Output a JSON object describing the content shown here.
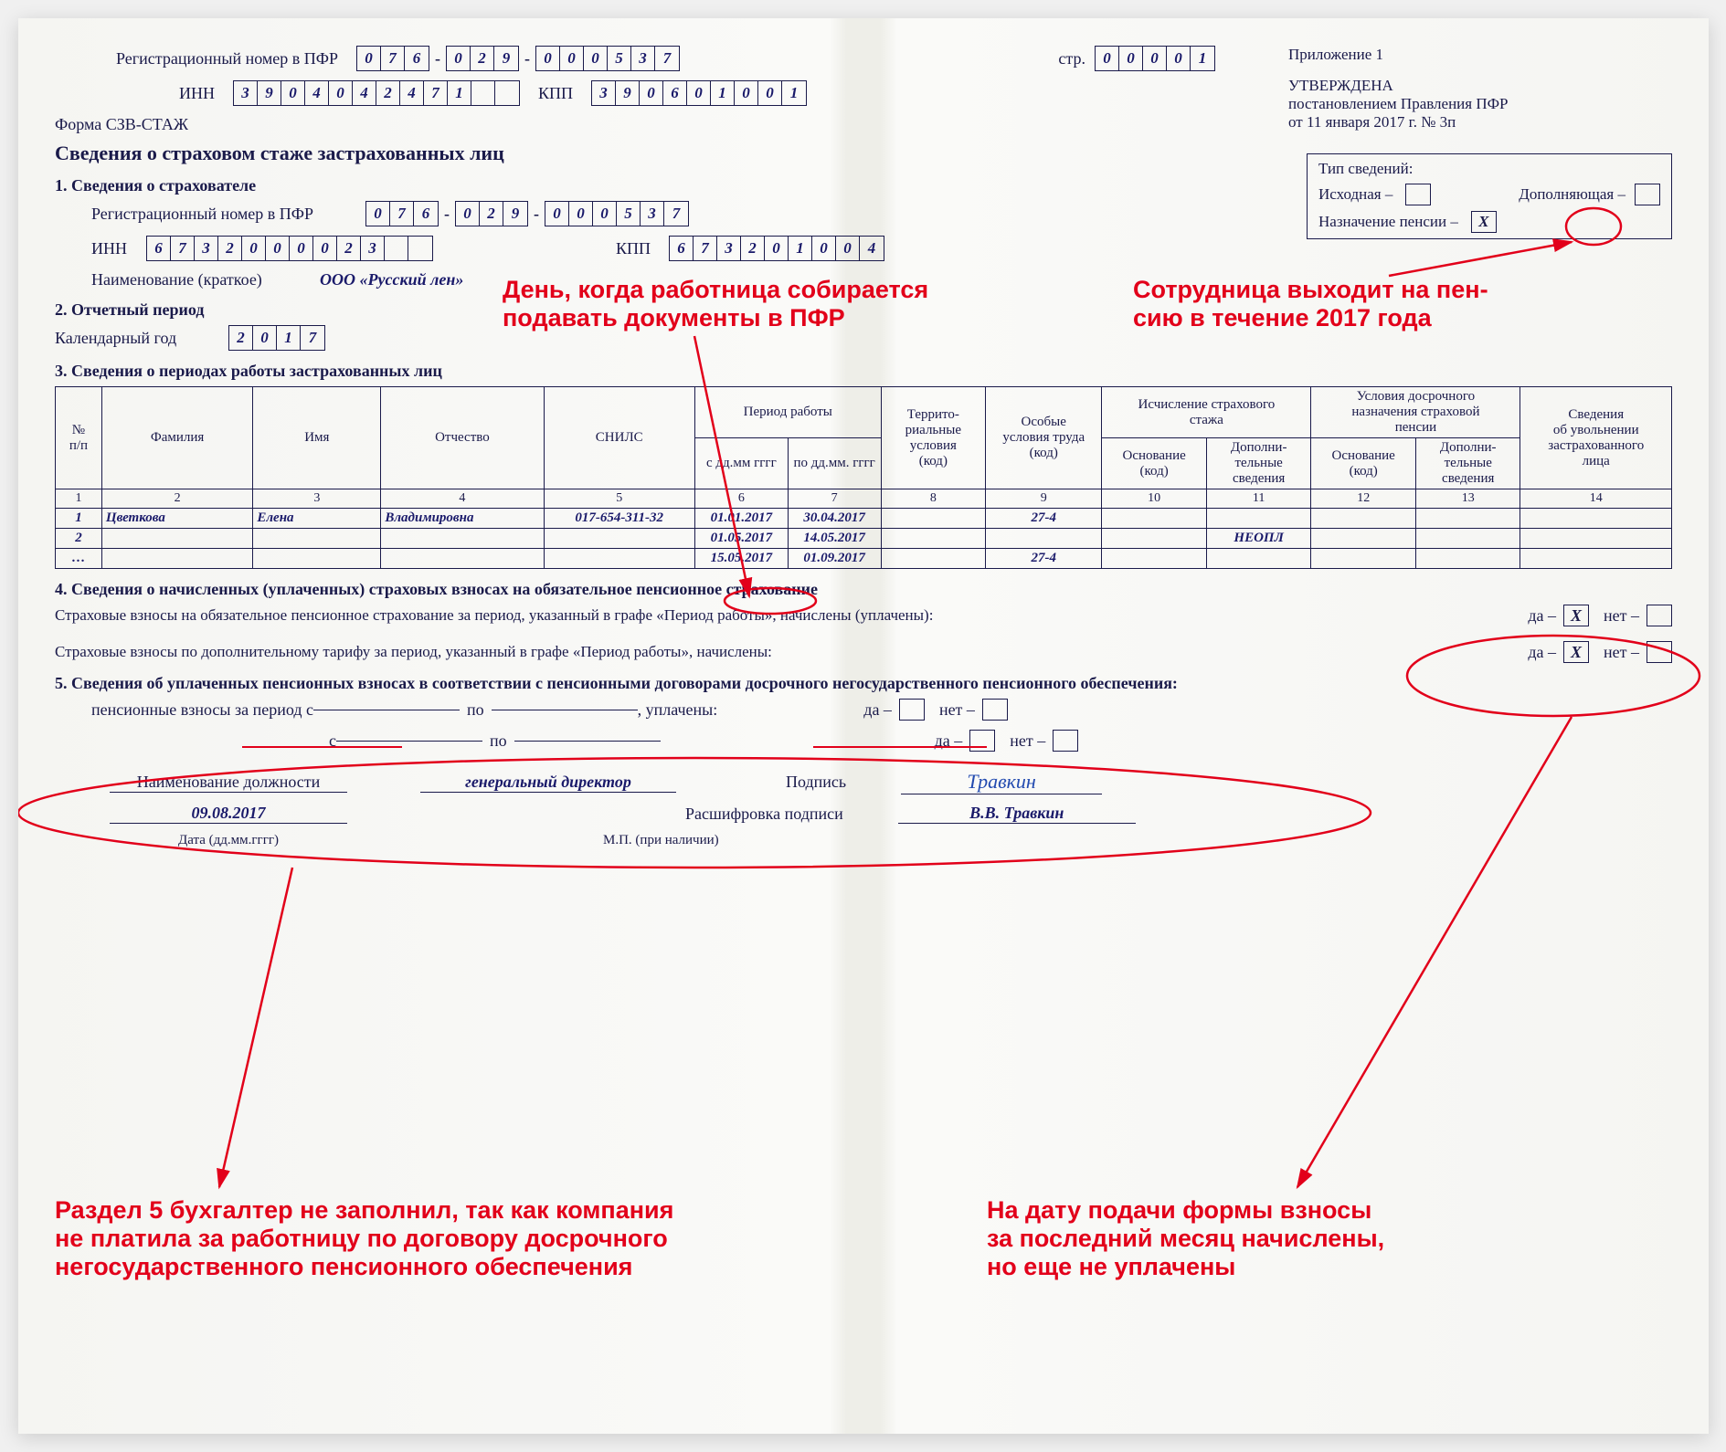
{
  "header": {
    "reg_label": "Регистрационный номер в ПФР",
    "reg1": [
      "0",
      "7",
      "6"
    ],
    "reg2": [
      "0",
      "2",
      "9"
    ],
    "reg3": [
      "0",
      "0",
      "0",
      "5",
      "3",
      "7"
    ],
    "page_label": "стр.",
    "page": [
      "0",
      "0",
      "0",
      "0",
      "1"
    ],
    "inn_label": "ИНН",
    "inn": [
      "3",
      "9",
      "0",
      "4",
      "0",
      "4",
      "2",
      "4",
      "7",
      "1",
      "",
      ""
    ],
    "kpp_label": "КПП",
    "kpp": [
      "3",
      "9",
      "0",
      "6",
      "0",
      "1",
      "0",
      "0",
      "1"
    ],
    "form_code": "Форма СЗВ-СТАЖ",
    "form_title": "Сведения о страховом стаже застрахованных лиц",
    "appendix": "Приложение 1",
    "approved": "УТВЕРЖДЕНА",
    "approved_by": "постановлением Правления ПФР",
    "approved_date": "от 11 января 2017 г. № 3п"
  },
  "type_box": {
    "title": "Тип сведений:",
    "opt1": "Исходная –",
    "opt2": "Дополняющая –",
    "opt3": "Назначение пенсии –",
    "opt3_val": "X"
  },
  "sec1": {
    "title": "1. Сведения о страхователе",
    "reg_label": "Регистрационный номер в ПФР",
    "reg1": [
      "0",
      "7",
      "6"
    ],
    "reg2": [
      "0",
      "2",
      "9"
    ],
    "reg3": [
      "0",
      "0",
      "0",
      "5",
      "3",
      "7"
    ],
    "inn_label": "ИНН",
    "inn": [
      "6",
      "7",
      "3",
      "2",
      "0",
      "0",
      "0",
      "0",
      "2",
      "3",
      "",
      ""
    ],
    "kpp_label": "КПП",
    "kpp": [
      "6",
      "7",
      "3",
      "2",
      "0",
      "1",
      "0",
      "0",
      "4"
    ],
    "name_label": "Наименование (краткое)",
    "name_val": "ООО «Русский лен»"
  },
  "sec2": {
    "title": "2. Отчетный период",
    "label": "Календарный год",
    "year": [
      "2",
      "0",
      "1",
      "7"
    ]
  },
  "sec3": {
    "title": "3. Сведения о периодах работы застрахованных лиц",
    "headers": {
      "n": "№\nп/п",
      "fam": "Фамилия",
      "name": "Имя",
      "otch": "Отчество",
      "snils": "СНИЛС",
      "period": "Период работы",
      "from": "с дд.мм гггг",
      "to": "по дд.мм. гггг",
      "terr": "Террито-\nриальные\nусловия\n(код)",
      "cond": "Особые\nусловия труда\n(код)",
      "stazh": "Исчисление страхового\nстажа",
      "stazh_osn": "Основание\n(код)",
      "stazh_dop": "Дополни-\nтельные\nсведения",
      "pens": "Условия досрочного\nназначения страховой\nпенсии",
      "pens_osn": "Основание\n(код)",
      "pens_dop": "Дополни-\nтельные\nсведения",
      "dismiss": "Сведения\nоб увольнении\nзастрахованного\nлица"
    },
    "rows": [
      {
        "n": "1",
        "fam": "Цветкова",
        "name": "Елена",
        "otch": "Владимировна",
        "snils": "017-654-311-32",
        "from": "01.01.2017",
        "to": "30.04.2017",
        "terr": "",
        "cond": "27-4",
        "s_osn": "",
        "s_dop": "",
        "p_osn": "",
        "p_dop": "",
        "dis": ""
      },
      {
        "n": "2",
        "fam": "",
        "name": "",
        "otch": "",
        "snils": "",
        "from": "01.05.2017",
        "to": "14.05.2017",
        "terr": "",
        "cond": "",
        "s_osn": "",
        "s_dop": "НЕОПЛ",
        "p_osn": "",
        "p_dop": "",
        "dis": ""
      },
      {
        "n": "…",
        "fam": "",
        "name": "",
        "otch": "",
        "snils": "",
        "from": "15.05.2017",
        "to": "01.09.2017",
        "terr": "",
        "cond": "27-4",
        "s_osn": "",
        "s_dop": "",
        "p_osn": "",
        "p_dop": "",
        "dis": ""
      }
    ]
  },
  "sec4": {
    "title": "4. Сведения о начисленных (уплаченных) страховых взносах на обязательное пенсионное страхование",
    "line1": "Страховые взносы на обязательное пенсионное страхование за период, указанный в графе «Период работы», начислены (уплачены):",
    "line2": "Страховые взносы по дополнительному тарифу за период, указанный в графе «Период работы», начислены:",
    "da": "да –",
    "net": "нет –",
    "val1": "X",
    "val2": "X"
  },
  "sec5": {
    "title": "5. Сведения об уплаченных пенсионных взносах в соответствии с пенсионными договорами досрочного негосударственного пенсионного обеспечения:",
    "row1": "пенсионные взносы за период с",
    "po": "по",
    "upl": ", уплачены:",
    "da": "да –",
    "net": "нет –",
    "pos_label": "Наименование должности",
    "pos_val": "генеральный директор",
    "sig_label": "Подпись",
    "sig_val": "Травкин",
    "date_val": "09.08.2017",
    "date_label": "Дата (дд.мм.гггг)",
    "mp": "М.П. (при наличии)",
    "ras_label": "Расшифровка подписи",
    "ras_val": "В.В. Травкин"
  },
  "annotations": {
    "a1": "День, когда работница собирается\nподавать документы в ПФР",
    "a2": "Сотрудница выходит на пен-\nсию в течение 2017 года",
    "a3": "Раздел 5 бухгалтер не заполнил, так как компания\nне платила за работницу по договору досрочного\nнегосударственного пенсионного обеспечения",
    "a4": "На дату подачи формы взносы\nза последний месяц начислены,\nно еще не уплачены"
  },
  "colors": {
    "text": "#1a1a4a",
    "data": "#1a1a6a",
    "annot": "#e2001a",
    "bg": "#f5f5f2"
  }
}
